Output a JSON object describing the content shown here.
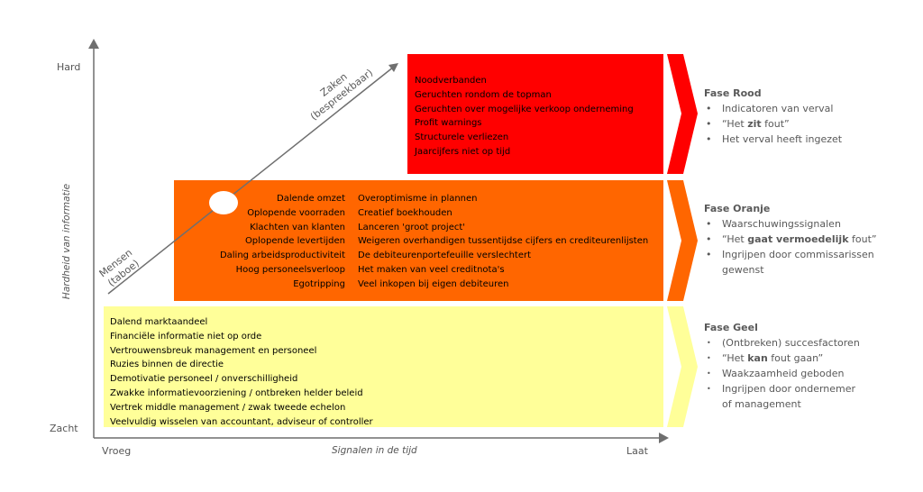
{
  "axes": {
    "y_top": "Hard",
    "y_bottom": "Zacht",
    "y_title": "Hardheid van informatie",
    "x_left": "Vroeg",
    "x_right": "Laat",
    "x_title": "Signalen in de tijd"
  },
  "diagonal": {
    "upper_line1": "Zaken",
    "upper_line2": "(bespreekbaar)",
    "lower_line1": "Mensen",
    "lower_line2": "(taboe)"
  },
  "red_box": {
    "items": [
      "Noodverbanden",
      "Geruchten rondom de topman",
      "Geruchten over mogelijke verkoop onderneming",
      "Profit warnings",
      "Structurele verliezen",
      "Jaarcijfers niet op tijd"
    ]
  },
  "orange_box": {
    "left_items": [
      "Dalende omzet",
      "Oplopende voorraden",
      "Klachten van klanten",
      "Oplopende levertijden",
      "Daling arbeidsproductiviteit",
      "Hoog personeelsverloop",
      "Egotripping"
    ],
    "right_items": [
      "Overoptimisme in plannen",
      "Creatief boekhouden",
      "Lanceren 'groot project'",
      "Weigeren overhandigen tussentijdse cijfers en crediteurenlijsten",
      "De debiteurenportefeuille verslechtert",
      "Het maken van veel creditnota's",
      "Veel inkopen bij eigen debiteuren"
    ]
  },
  "yellow_box": {
    "items": [
      "Dalend marktaandeel",
      "Financiële informatie niet op orde",
      "Vertrouwensbreuk management en personeel",
      "Ruzies binnen de directie",
      "Demotivatie personeel / onverschilligheid",
      "Zwakke informatievoorziening / ontbreken helder beleid",
      "Vertrek middle management / zwak tweede echelon",
      "Veelvuldig wisselen van accountant, adviseur of controller"
    ]
  },
  "phases": {
    "red": {
      "title": "Fase Rood",
      "b1": "Indicatoren van verval",
      "b2_pre": "“Het ",
      "b2_bold": "zit",
      "b2_post": " fout”",
      "b3": "Het verval heeft ingezet"
    },
    "orange": {
      "title": "Fase Oranje",
      "b1": "Waarschuwingssignalen",
      "b2_pre": "“Het ",
      "b2_bold": "gaat vermoedelijk",
      "b2_post": " fout”",
      "b3_line1": "Ingrijpen door commissarissen",
      "b3_line2": "gewenst"
    },
    "yellow": {
      "title": "Fase Geel",
      "b1": "(Ontbreken) succesfactoren",
      "b2_pre": "“Het ",
      "b2_bold": "kan",
      "b2_post": " fout gaan”",
      "b3": "Waakzaamheid geboden",
      "b4_line1": "Ingrijpen door ondernemer",
      "b4_line2": "of management"
    }
  },
  "colors": {
    "red": "#ff0000",
    "orange": "#ff6600",
    "yellow": "#ffff99",
    "axis": "#595959"
  }
}
